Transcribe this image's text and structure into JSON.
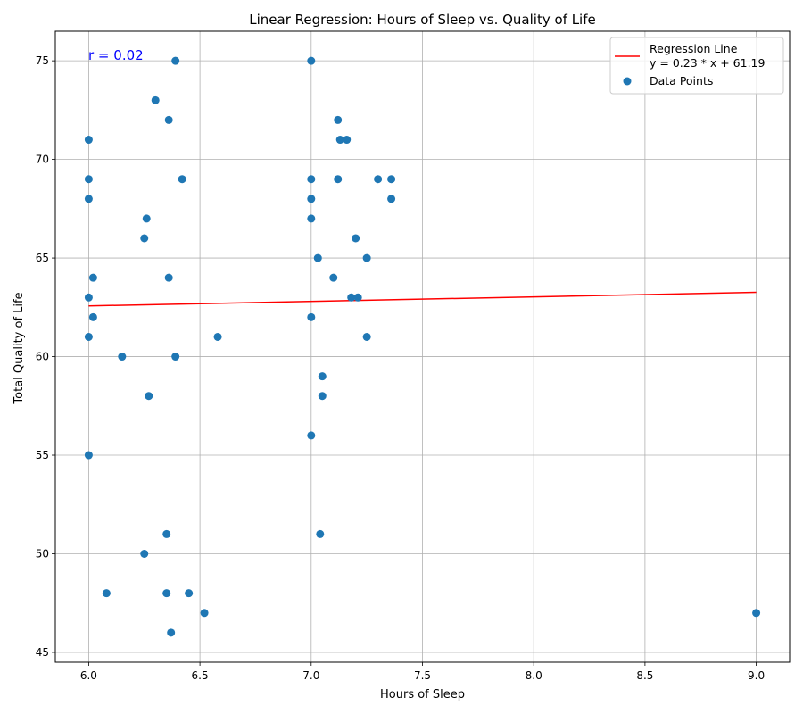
{
  "chart_data": {
    "type": "scatter",
    "title": "Linear Regression: Hours of Sleep vs. Quality of Life",
    "xlabel": "Hours of Sleep",
    "ylabel": "Total Quality of Life",
    "xlim": [
      5.85,
      9.15
    ],
    "ylim": [
      44.5,
      76.5
    ],
    "xticks": [
      6.0,
      6.5,
      7.0,
      7.5,
      8.0,
      8.5,
      9.0
    ],
    "xtick_labels": [
      "6.0",
      "6.5",
      "7.0",
      "7.5",
      "8.0",
      "8.5",
      "9.0"
    ],
    "yticks": [
      45,
      50,
      55,
      60,
      65,
      70,
      75
    ],
    "ytick_labels": [
      "45",
      "50",
      "55",
      "60",
      "65",
      "70",
      "75"
    ],
    "grid": true,
    "legend_position": "top-right",
    "annotation": {
      "text": "r = 0.02",
      "color": "#0000ff"
    },
    "colors": {
      "points": "#1f77b4",
      "regression": "#ff0000"
    },
    "series": [
      {
        "name": "Data Points",
        "kind": "scatter",
        "points": [
          [
            6.0,
            71
          ],
          [
            6.0,
            69
          ],
          [
            6.0,
            68
          ],
          [
            6.0,
            63
          ],
          [
            6.0,
            61
          ],
          [
            6.0,
            55
          ],
          [
            6.02,
            64
          ],
          [
            6.02,
            62
          ],
          [
            6.08,
            48
          ],
          [
            6.15,
            60
          ],
          [
            6.25,
            66
          ],
          [
            6.25,
            50
          ],
          [
            6.26,
            67
          ],
          [
            6.27,
            58
          ],
          [
            6.3,
            73
          ],
          [
            6.35,
            51
          ],
          [
            6.35,
            48
          ],
          [
            6.36,
            72
          ],
          [
            6.36,
            64
          ],
          [
            6.37,
            46
          ],
          [
            6.39,
            75
          ],
          [
            6.39,
            60
          ],
          [
            6.42,
            69
          ],
          [
            6.45,
            48
          ],
          [
            6.52,
            47
          ],
          [
            6.58,
            61
          ],
          [
            7.0,
            75
          ],
          [
            7.0,
            69
          ],
          [
            7.0,
            68
          ],
          [
            7.0,
            67
          ],
          [
            7.0,
            62
          ],
          [
            7.0,
            56
          ],
          [
            7.03,
            65
          ],
          [
            7.04,
            51
          ],
          [
            7.05,
            59
          ],
          [
            7.05,
            58
          ],
          [
            7.1,
            64
          ],
          [
            7.12,
            72
          ],
          [
            7.12,
            69
          ],
          [
            7.13,
            71
          ],
          [
            7.16,
            71
          ],
          [
            7.18,
            63
          ],
          [
            7.2,
            66
          ],
          [
            7.21,
            63
          ],
          [
            7.25,
            65
          ],
          [
            7.25,
            61
          ],
          [
            7.3,
            69
          ],
          [
            7.36,
            69
          ],
          [
            7.36,
            68
          ],
          [
            9.0,
            47
          ]
        ]
      },
      {
        "name": "Regression Line",
        "kind": "line",
        "equation": "y = 0.23 * x + 61.19",
        "slope": 0.23,
        "intercept": 61.19,
        "x_range": [
          6.0,
          9.0
        ]
      }
    ]
  }
}
